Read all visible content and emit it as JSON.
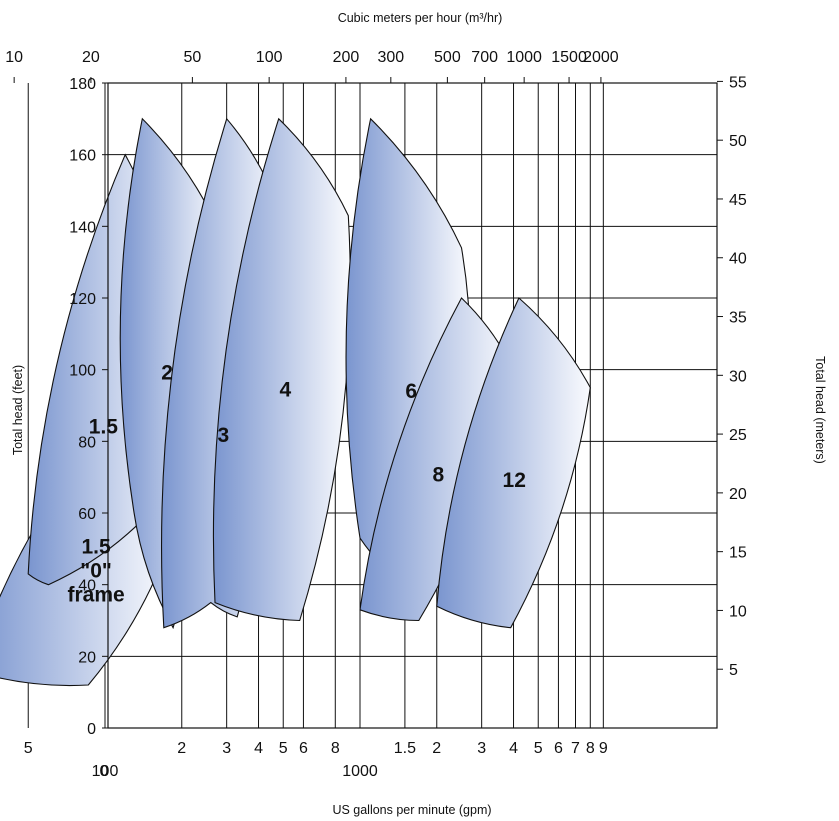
{
  "chart_data": {
    "type": "area",
    "title": "",
    "top_axis": {
      "label": "Cubic meters per hour (m³/hr)",
      "ticks": [
        "10",
        "20",
        "50",
        "100",
        "200",
        "300",
        "500",
        "700",
        "1000",
        "1500",
        "2000"
      ]
    },
    "bottom_axis": {
      "label": "US gallons per minute (gpm)",
      "ticks": [
        "5",
        "100",
        "2",
        "3",
        "4",
        "5",
        "6",
        "8",
        "1000",
        "1.5",
        "2",
        "3",
        "4",
        "5",
        "6",
        "7",
        "8",
        "9"
      ],
      "origin": "0"
    },
    "left_axis": {
      "label": "Total head (feet)",
      "range": [
        0,
        180
      ],
      "ticks": [
        "0",
        "20",
        "40",
        "60",
        "80",
        "100",
        "120",
        "140",
        "160",
        "180"
      ]
    },
    "right_axis": {
      "label": "Total head (meters)",
      "ticks": [
        "5",
        "10",
        "15",
        "20",
        "25",
        "30",
        "35",
        "40",
        "45",
        "50",
        "55"
      ]
    },
    "grid": true,
    "regions": [
      {
        "name": "1.5 \"0\" frame",
        "label_lines": [
          "1.5",
          "\"0\"",
          "frame"
        ],
        "outline_gpm_ft": [
          [
            30,
            16
          ],
          [
            90,
            80
          ],
          [
            160,
            60
          ],
          [
            180,
            52
          ],
          [
            86,
            12
          ]
        ]
      },
      {
        "name": "1.5",
        "label_lines": [
          "1.5"
        ],
        "outline_gpm_ft": [
          [
            50,
            43
          ],
          [
            120,
            160
          ],
          [
            185,
            120
          ],
          [
            140,
            58
          ],
          [
            60,
            40
          ]
        ]
      },
      {
        "name": "2",
        "label_lines": [
          "2"
        ],
        "outline_gpm_ft": [
          [
            130,
            60
          ],
          [
            140,
            170
          ],
          [
            280,
            139
          ],
          [
            185,
            28
          ]
        ]
      },
      {
        "name": "3",
        "label_lines": [
          "3"
        ],
        "outline_gpm_ft": [
          [
            170,
            28
          ],
          [
            300,
            170
          ],
          [
            480,
            145
          ],
          [
            330,
            31
          ],
          [
            260,
            35
          ]
        ]
      },
      {
        "name": "4",
        "label_lines": [
          "4"
        ],
        "outline_gpm_ft": [
          [
            270,
            35
          ],
          [
            480,
            170
          ],
          [
            900,
            143
          ],
          [
            580,
            30
          ]
        ]
      },
      {
        "name": "6",
        "label_lines": [
          "6"
        ],
        "outline_gpm_ft": [
          [
            1000,
            53
          ],
          [
            1100,
            170
          ],
          [
            2500,
            134
          ],
          [
            2450,
            73
          ],
          [
            1500,
            40
          ]
        ]
      },
      {
        "name": "8",
        "label_lines": [
          "8"
        ],
        "outline_gpm_ft": [
          [
            1000,
            33
          ],
          [
            2500,
            120
          ],
          [
            4000,
            100
          ],
          [
            1700,
            30
          ]
        ]
      },
      {
        "name": "12",
        "label_lines": [
          "12"
        ],
        "outline_gpm_ft": [
          [
            2000,
            34
          ],
          [
            4200,
            120
          ],
          [
            8000,
            95
          ],
          [
            3900,
            28
          ]
        ]
      }
    ]
  }
}
